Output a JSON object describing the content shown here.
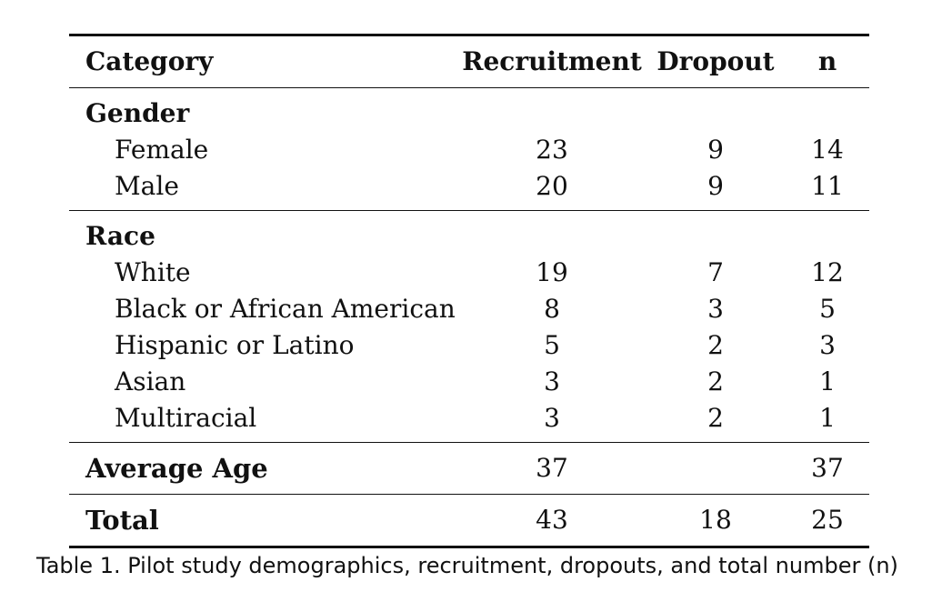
{
  "table": {
    "headers": [
      "Category",
      "Recruitment",
      "Dropout",
      "n"
    ],
    "groups": [
      {
        "label": "Gender",
        "rows": [
          {
            "label": "Female",
            "recruitment": "23",
            "dropout": "9",
            "n": "14"
          },
          {
            "label": "Male",
            "recruitment": "20",
            "dropout": "9",
            "n": "11"
          }
        ]
      },
      {
        "label": "Race",
        "rows": [
          {
            "label": "White",
            "recruitment": "19",
            "dropout": "7",
            "n": "12"
          },
          {
            "label": "Black or African American",
            "recruitment": "8",
            "dropout": "3",
            "n": "5"
          },
          {
            "label": "Hispanic or Latino",
            "recruitment": "5",
            "dropout": "2",
            "n": "3"
          },
          {
            "label": "Asian",
            "recruitment": "3",
            "dropout": "2",
            "n": "1"
          },
          {
            "label": "Multiracial",
            "recruitment": "3",
            "dropout": "2",
            "n": "1"
          }
        ]
      }
    ],
    "average_age": {
      "label": "Average Age",
      "recruitment": "37",
      "dropout": "",
      "n": "37"
    },
    "total": {
      "label": "Total",
      "recruitment": "43",
      "dropout": "18",
      "n": "25"
    }
  },
  "caption": "Table 1.  Pilot study demographics, recruitment, dropouts, and total number (n)"
}
